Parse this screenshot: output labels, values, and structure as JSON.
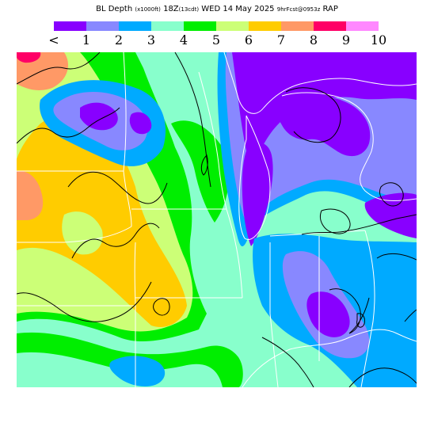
{
  "header": {
    "title_main": "BL Depth",
    "title_units": "(x1000ft)",
    "title_time": "18Z",
    "title_valid": "(13cdt)",
    "title_date": "WED 14 May 2025",
    "title_forecast": "9hrFcst@0953z",
    "title_model": "RAP"
  },
  "legend": {
    "colors": [
      "#8800ff",
      "#8888ff",
      "#00aaff",
      "#88ffcc",
      "#00ee00",
      "#ccff77",
      "#ffcc00",
      "#ff9966",
      "#ff0066",
      "#ff88ff"
    ],
    "ticks": [
      "<",
      "1",
      "2",
      "3",
      "4",
      "5",
      "6",
      "7",
      "8",
      "9",
      "10"
    ]
  },
  "map": {
    "field": "boundary layer depth",
    "region": "Upper Midwest / Great Lakes",
    "colors": {
      "lt1": "#8800ff",
      "b1_2": "#8888ff",
      "b2_3": "#00aaff",
      "b3_4": "#88ffcc",
      "b4_5": "#00ee00",
      "b5_6": "#ccff77",
      "b6_7": "#ffcc00",
      "b7_8": "#ff9966",
      "b8_9": "#ff0066",
      "b9_10": "#ff88ff",
      "border": "#ffffff",
      "contour": "#000000"
    }
  }
}
